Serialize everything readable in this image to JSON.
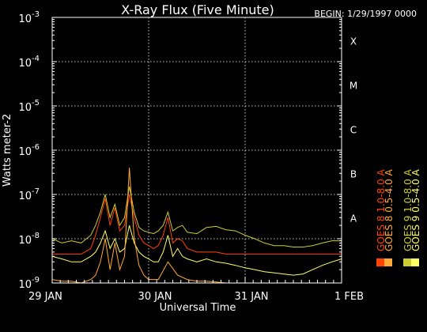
{
  "chart_data": {
    "type": "line",
    "title": "X-Ray Flux (Five Minute)",
    "begin_label": "BEGIN: 1/29/1997 0000",
    "xlabel": "Universal Time",
    "ylabel": "Watts meter-2",
    "y_scale": "log",
    "ylim": [
      1e-09,
      0.001
    ],
    "xlim": [
      0,
      3
    ],
    "x_unit": "days since 29 JAN 1997 0000 UT",
    "x_ticks": [
      {
        "value": 0,
        "label": "29 JAN"
      },
      {
        "value": 1,
        "label": "30 JAN"
      },
      {
        "value": 2,
        "label": "31 JAN"
      },
      {
        "value": 3,
        "label": "1 FEB"
      }
    ],
    "y_ticks": [
      {
        "value": 1e-09,
        "base": "10",
        "exp": "-9"
      },
      {
        "value": 1e-08,
        "base": "10",
        "exp": "-8"
      },
      {
        "value": 1e-07,
        "base": "10",
        "exp": "-7"
      },
      {
        "value": 1e-06,
        "base": "10",
        "exp": "-6"
      },
      {
        "value": 1e-05,
        "base": "10",
        "exp": "-5"
      },
      {
        "value": 0.0001,
        "base": "10",
        "exp": "-4"
      },
      {
        "value": 0.001,
        "base": "10",
        "exp": "-3"
      }
    ],
    "flare_classes": [
      {
        "label": "A",
        "value": 3e-08
      },
      {
        "label": "B",
        "value": 3e-07
      },
      {
        "label": "C",
        "value": 3e-06
      },
      {
        "label": "M",
        "value": 3e-05
      },
      {
        "label": "X",
        "value": 0.0003
      }
    ],
    "grid": "dotted at decades and day boundaries",
    "legend_position": "right, rotated vertical",
    "series": [
      {
        "name": "GOES 9 1.0-8.0 A",
        "color": "#cccc33",
        "x": [
          0.0,
          0.1,
          0.2,
          0.3,
          0.4,
          0.45,
          0.5,
          0.55,
          0.6,
          0.65,
          0.7,
          0.75,
          0.8,
          0.85,
          0.9,
          0.95,
          1.0,
          1.05,
          1.1,
          1.15,
          1.2,
          1.25,
          1.3,
          1.35,
          1.4,
          1.5,
          1.6,
          1.7,
          1.8,
          1.9,
          2.0,
          2.1,
          2.2,
          2.3,
          2.4,
          2.5,
          2.6,
          2.7,
          2.8,
          2.9,
          3.0
        ],
        "y": [
          1e-08,
          8e-09,
          9e-09,
          8e-09,
          1.2e-08,
          2e-08,
          4e-08,
          1e-07,
          3e-08,
          6e-08,
          2e-08,
          3e-08,
          1.5e-07,
          4e-08,
          1.8e-08,
          1.5e-08,
          1.4e-08,
          1.3e-08,
          1.5e-08,
          2e-08,
          4e-08,
          1.5e-08,
          1.8e-08,
          2e-08,
          1.4e-08,
          1.3e-08,
          1.8e-08,
          1.9e-08,
          1.6e-08,
          1.5e-08,
          1.2e-08,
          1e-08,
          8e-09,
          7e-09,
          7e-09,
          6.5e-09,
          6.5e-09,
          7e-09,
          8e-09,
          9e-09,
          9e-09
        ]
      },
      {
        "name": "GOES 9 0.5-4.0 A",
        "color": "#ffff66",
        "x": [
          0.0,
          0.1,
          0.2,
          0.3,
          0.4,
          0.45,
          0.5,
          0.55,
          0.6,
          0.65,
          0.7,
          0.75,
          0.8,
          0.85,
          0.9,
          0.95,
          1.0,
          1.05,
          1.1,
          1.15,
          1.2,
          1.25,
          1.3,
          1.35,
          1.4,
          1.5,
          1.6,
          1.7,
          1.8,
          1.9,
          2.0,
          2.1,
          2.2,
          2.3,
          2.4,
          2.5,
          2.6,
          2.7,
          2.8,
          2.9,
          3.0
        ],
        "y": [
          4e-09,
          3.5e-09,
          3e-09,
          3e-09,
          4e-09,
          5e-09,
          8e-09,
          1.5e-08,
          6e-09,
          1e-08,
          5e-09,
          6e-09,
          2e-08,
          8e-09,
          5e-09,
          4e-09,
          3.5e-09,
          3e-09,
          3e-09,
          5e-09,
          1.2e-08,
          4e-09,
          6e-09,
          4e-09,
          3.5e-09,
          3e-09,
          3.5e-09,
          3e-09,
          2.8e-09,
          2.5e-09,
          2.2e-09,
          2e-09,
          1.8e-09,
          1.7e-09,
          1.6e-09,
          1.5e-09,
          1.6e-09,
          2e-09,
          2.5e-09,
          3e-09,
          3.5e-09
        ]
      },
      {
        "name": "GOES 8 1.0-8.0 A",
        "color": "#ff4400",
        "x": [
          0.0,
          0.1,
          0.2,
          0.3,
          0.4,
          0.45,
          0.5,
          0.55,
          0.6,
          0.65,
          0.7,
          0.75,
          0.8,
          0.85,
          0.9,
          0.95,
          1.0,
          1.05,
          1.1,
          1.15,
          1.2,
          1.25,
          1.3,
          1.35,
          1.4,
          1.5,
          1.6,
          1.7,
          1.8,
          1.9,
          2.0,
          2.1,
          2.2,
          2.3,
          2.4,
          2.5,
          2.6,
          2.7,
          2.8,
          2.9,
          3.0
        ],
        "y": [
          4.5e-09,
          4.5e-09,
          4.5e-09,
          4.5e-09,
          6e-09,
          1.2e-08,
          3e-08,
          8e-08,
          2e-08,
          5e-08,
          1.5e-08,
          2e-08,
          1e-07,
          3e-08,
          1.2e-08,
          8e-09,
          7e-09,
          6e-09,
          7e-09,
          1.2e-08,
          3e-08,
          8e-09,
          1e-08,
          9e-09,
          6e-09,
          5e-09,
          5e-09,
          5e-09,
          4.5e-09,
          4.5e-09,
          4.5e-09,
          4.5e-09,
          4.5e-09,
          4.5e-09,
          4.5e-09,
          4.5e-09,
          4.5e-09,
          4.5e-09,
          4.5e-09,
          4.5e-09,
          4.5e-09
        ]
      },
      {
        "name": "GOES 8 0.5-4.0 A",
        "color": "#ffaa33",
        "x": [
          0.0,
          0.1,
          0.2,
          0.3,
          0.4,
          0.45,
          0.5,
          0.55,
          0.6,
          0.65,
          0.7,
          0.75,
          0.8,
          0.85,
          0.9,
          0.95,
          1.0,
          1.1,
          1.2,
          1.3,
          1.4,
          1.5,
          1.6,
          1.7,
          1.8,
          1.9,
          2.0,
          2.1,
          2.2,
          2.3,
          2.4,
          2.5,
          2.6,
          2.7,
          2.8,
          2.9,
          3.0
        ],
        "y": [
          1.2e-09,
          1.1e-09,
          1.1e-09,
          1e-09,
          1.2e-09,
          1.5e-09,
          3e-09,
          1e-08,
          2e-09,
          8e-09,
          2e-09,
          4e-09,
          4e-07,
          1e-08,
          2.5e-09,
          1.5e-09,
          1.2e-09,
          1.2e-09,
          3e-09,
          1.5e-09,
          1.2e-09,
          1.1e-09,
          1.1e-09,
          1.05e-09,
          1e-09,
          1e-09,
          1e-09,
          1e-09,
          1e-09,
          1e-09,
          1e-09,
          1e-09,
          1e-09,
          1e-09,
          1e-09,
          1e-09,
          1e-09
        ]
      }
    ],
    "legend": [
      {
        "series": 2,
        "label": "GOES 8 1.0-8.0 A",
        "color": "#ff4400"
      },
      {
        "series": 3,
        "label": "GOES 8 0.5-4.0 A",
        "color": "#ffaa33"
      },
      {
        "series": 0,
        "label": "GOES 9 1.0-8.0 A",
        "color": "#cccc33"
      },
      {
        "series": 1,
        "label": "GOES 9 0.5-4.0 A",
        "color": "#ffff66"
      }
    ]
  }
}
